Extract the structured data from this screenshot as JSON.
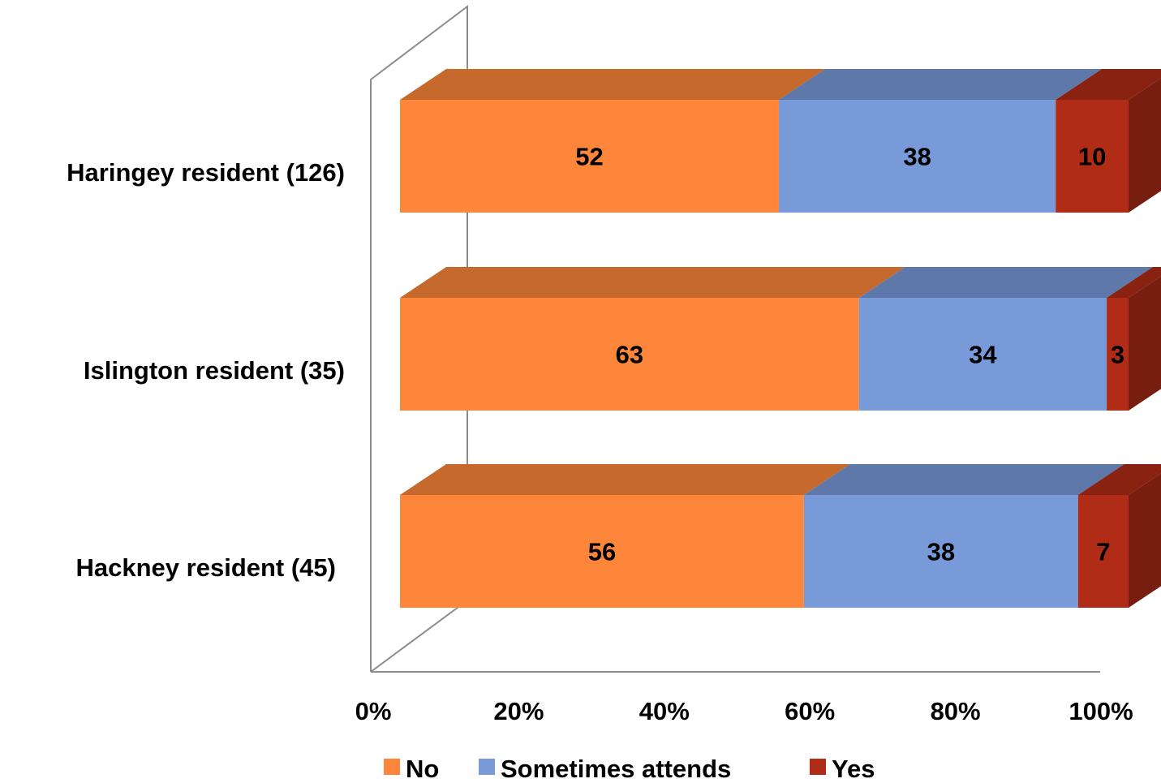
{
  "chart_data": {
    "type": "bar",
    "orientation": "horizontal",
    "stacked": "percent",
    "style": "3d",
    "categories": [
      "Haringey resident (126)",
      "Islington resident (35)",
      "Hackney resident (45)"
    ],
    "series": [
      {
        "name": "No",
        "color": "#FD863A",
        "values": [
          52,
          63,
          56
        ]
      },
      {
        "name": "Sometimes attends",
        "color": "#789AD9",
        "values": [
          38,
          34,
          38
        ]
      },
      {
        "name": "Yes",
        "color": "#B12C17",
        "values": [
          10,
          3,
          7
        ]
      }
    ],
    "x_ticks": [
      "0%",
      "20%",
      "40%",
      "60%",
      "80%",
      "100%"
    ],
    "xlim": [
      0,
      100
    ],
    "legend_position": "bottom",
    "grid": false
  }
}
